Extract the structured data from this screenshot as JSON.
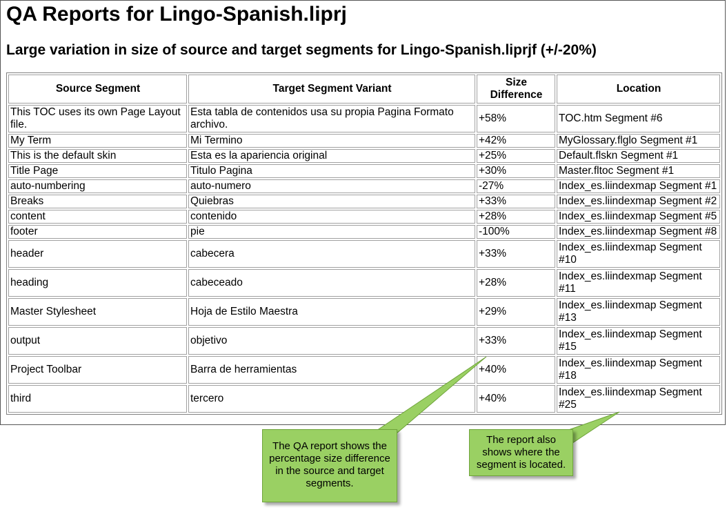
{
  "report": {
    "title": "QA Reports for Lingo-Spanish.liprj",
    "subtitle": "Large variation in size of source and target segments for Lingo-Spanish.liprjf (+/-20%)"
  },
  "table": {
    "headers": [
      "Source Segment",
      "Target Segment Variant",
      "Size Difference",
      "Location"
    ],
    "rows": [
      [
        "This TOC uses its own Page Layout file.",
        "Esta tabla de contenidos usa su propia Pagina Formato archivo.",
        "+58%",
        "TOC.htm Segment #6"
      ],
      [
        "My Term",
        "Mi Termino",
        "+42%",
        "MyGlossary.flglo Segment #1"
      ],
      [
        "This is the default skin",
        "Esta es la apariencia original",
        "+25%",
        "Default.flskn Segment #1"
      ],
      [
        "Title Page",
        "Titulo Pagina",
        "+30%",
        "Master.fltoc Segment #1"
      ],
      [
        "auto-numbering",
        "auto-numero",
        "-27%",
        "Index_es.liindexmap Segment #1"
      ],
      [
        "Breaks",
        "Quiebras",
        "+33%",
        "Index_es.liindexmap Segment #2"
      ],
      [
        "content",
        "contenido",
        "+28%",
        "Index_es.liindexmap Segment #5"
      ],
      [
        "footer",
        "pie",
        "-100%",
        "Index_es.liindexmap Segment #8"
      ],
      [
        "header",
        "cabecera",
        "+33%",
        "Index_es.liindexmap Segment #10"
      ],
      [
        "heading",
        "cabeceado",
        "+28%",
        "Index_es.liindexmap Segment #11"
      ],
      [
        "Master Stylesheet",
        "Hoja de Estilo Maestra",
        "+29%",
        "Index_es.liindexmap Segment #13"
      ],
      [
        "output",
        "objetivo",
        "+33%",
        "Index_es.liindexmap Segment #15"
      ],
      [
        "Project Toolbar",
        "Barra de herramientas",
        "+40%",
        "Index_es.liindexmap Segment #18"
      ],
      [
        "third",
        "tercero",
        "+40%",
        "Index_es.liindexmap Segment #25"
      ]
    ]
  },
  "callouts": {
    "size_note": "The QA report shows the percentage size difference in the source and target segments.",
    "location_note": "The report also shows where the segment is located."
  },
  "colors": {
    "callout_fill": "#9ad063",
    "callout_border": "#6ea33a"
  }
}
